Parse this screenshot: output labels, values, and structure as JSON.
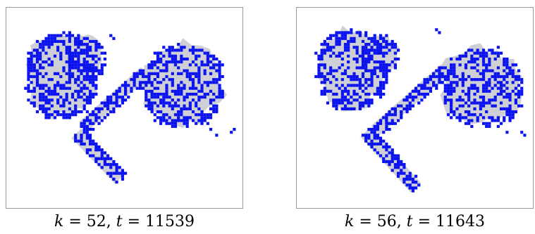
{
  "figure": {
    "panels": [
      {
        "id": "left",
        "k_var": "k",
        "k_value": "52",
        "t_var": "t",
        "t_value": "11539",
        "colors": {
          "fill": "#cfd0d5",
          "pixel": "#0a12f0",
          "border": "#9a9a9a"
        }
      },
      {
        "id": "right",
        "k_var": "k",
        "k_value": "56",
        "t_var": "t",
        "t_value": "11643",
        "colors": {
          "fill": "#cfd0d5",
          "pixel": "#0a12f0",
          "border": "#9a9a9a"
        }
      }
    ]
  }
}
